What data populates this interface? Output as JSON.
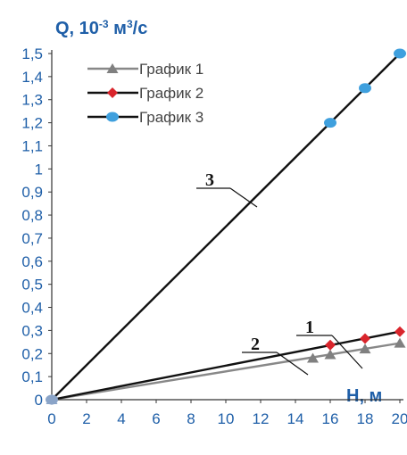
{
  "chart_data": {
    "type": "line",
    "ylabel_main": "Q, 10",
    "ylabel_exp": "-3",
    "ylabel_unit": " м",
    "ylabel_unit_exp": "3",
    "ylabel_tail": "/с",
    "xlabel": "H, м",
    "xlim": [
      0,
      20
    ],
    "ylim": [
      0,
      1.5
    ],
    "x_ticks": [
      "0",
      "2",
      "4",
      "6",
      "8",
      "10",
      "12",
      "14",
      "16",
      "18",
      "20"
    ],
    "y_ticks": [
      "0",
      "0,1",
      "0,2",
      "0,3",
      "0,4",
      "0,5",
      "0,6",
      "0,7",
      "0,8",
      "0,9",
      "1",
      "1,1",
      "1,2",
      "1,3",
      "1,4",
      "1,5"
    ],
    "legend_position": "top-left",
    "grid": false,
    "series": [
      {
        "name": "График 1",
        "marker": "triangle",
        "color": "#808080",
        "line_color": "#888888",
        "line": [
          [
            0,
            0
          ],
          [
            20,
            0.245
          ]
        ],
        "points": [
          [
            0,
            0
          ],
          [
            15,
            0.18
          ],
          [
            16,
            0.195
          ],
          [
            18,
            0.22
          ],
          [
            20,
            0.245
          ]
        ],
        "annotation": "1"
      },
      {
        "name": "График 2",
        "marker": "diamond",
        "color": "#d9252c",
        "line_color": "#111111",
        "line": [
          [
            0,
            0
          ],
          [
            20,
            0.295
          ]
        ],
        "points": [
          [
            0,
            0
          ],
          [
            16,
            0.237
          ],
          [
            18,
            0.265
          ],
          [
            20,
            0.295
          ]
        ],
        "annotation": "2"
      },
      {
        "name": "График 3",
        "marker": "circle",
        "color": "#3fa0de",
        "line_color": "#111111",
        "line": [
          [
            0,
            0
          ],
          [
            20,
            1.5
          ]
        ],
        "points": [
          [
            0,
            0
          ],
          [
            16,
            1.2
          ],
          [
            18,
            1.35
          ],
          [
            20,
            1.5
          ]
        ],
        "annotation": "3"
      }
    ]
  }
}
